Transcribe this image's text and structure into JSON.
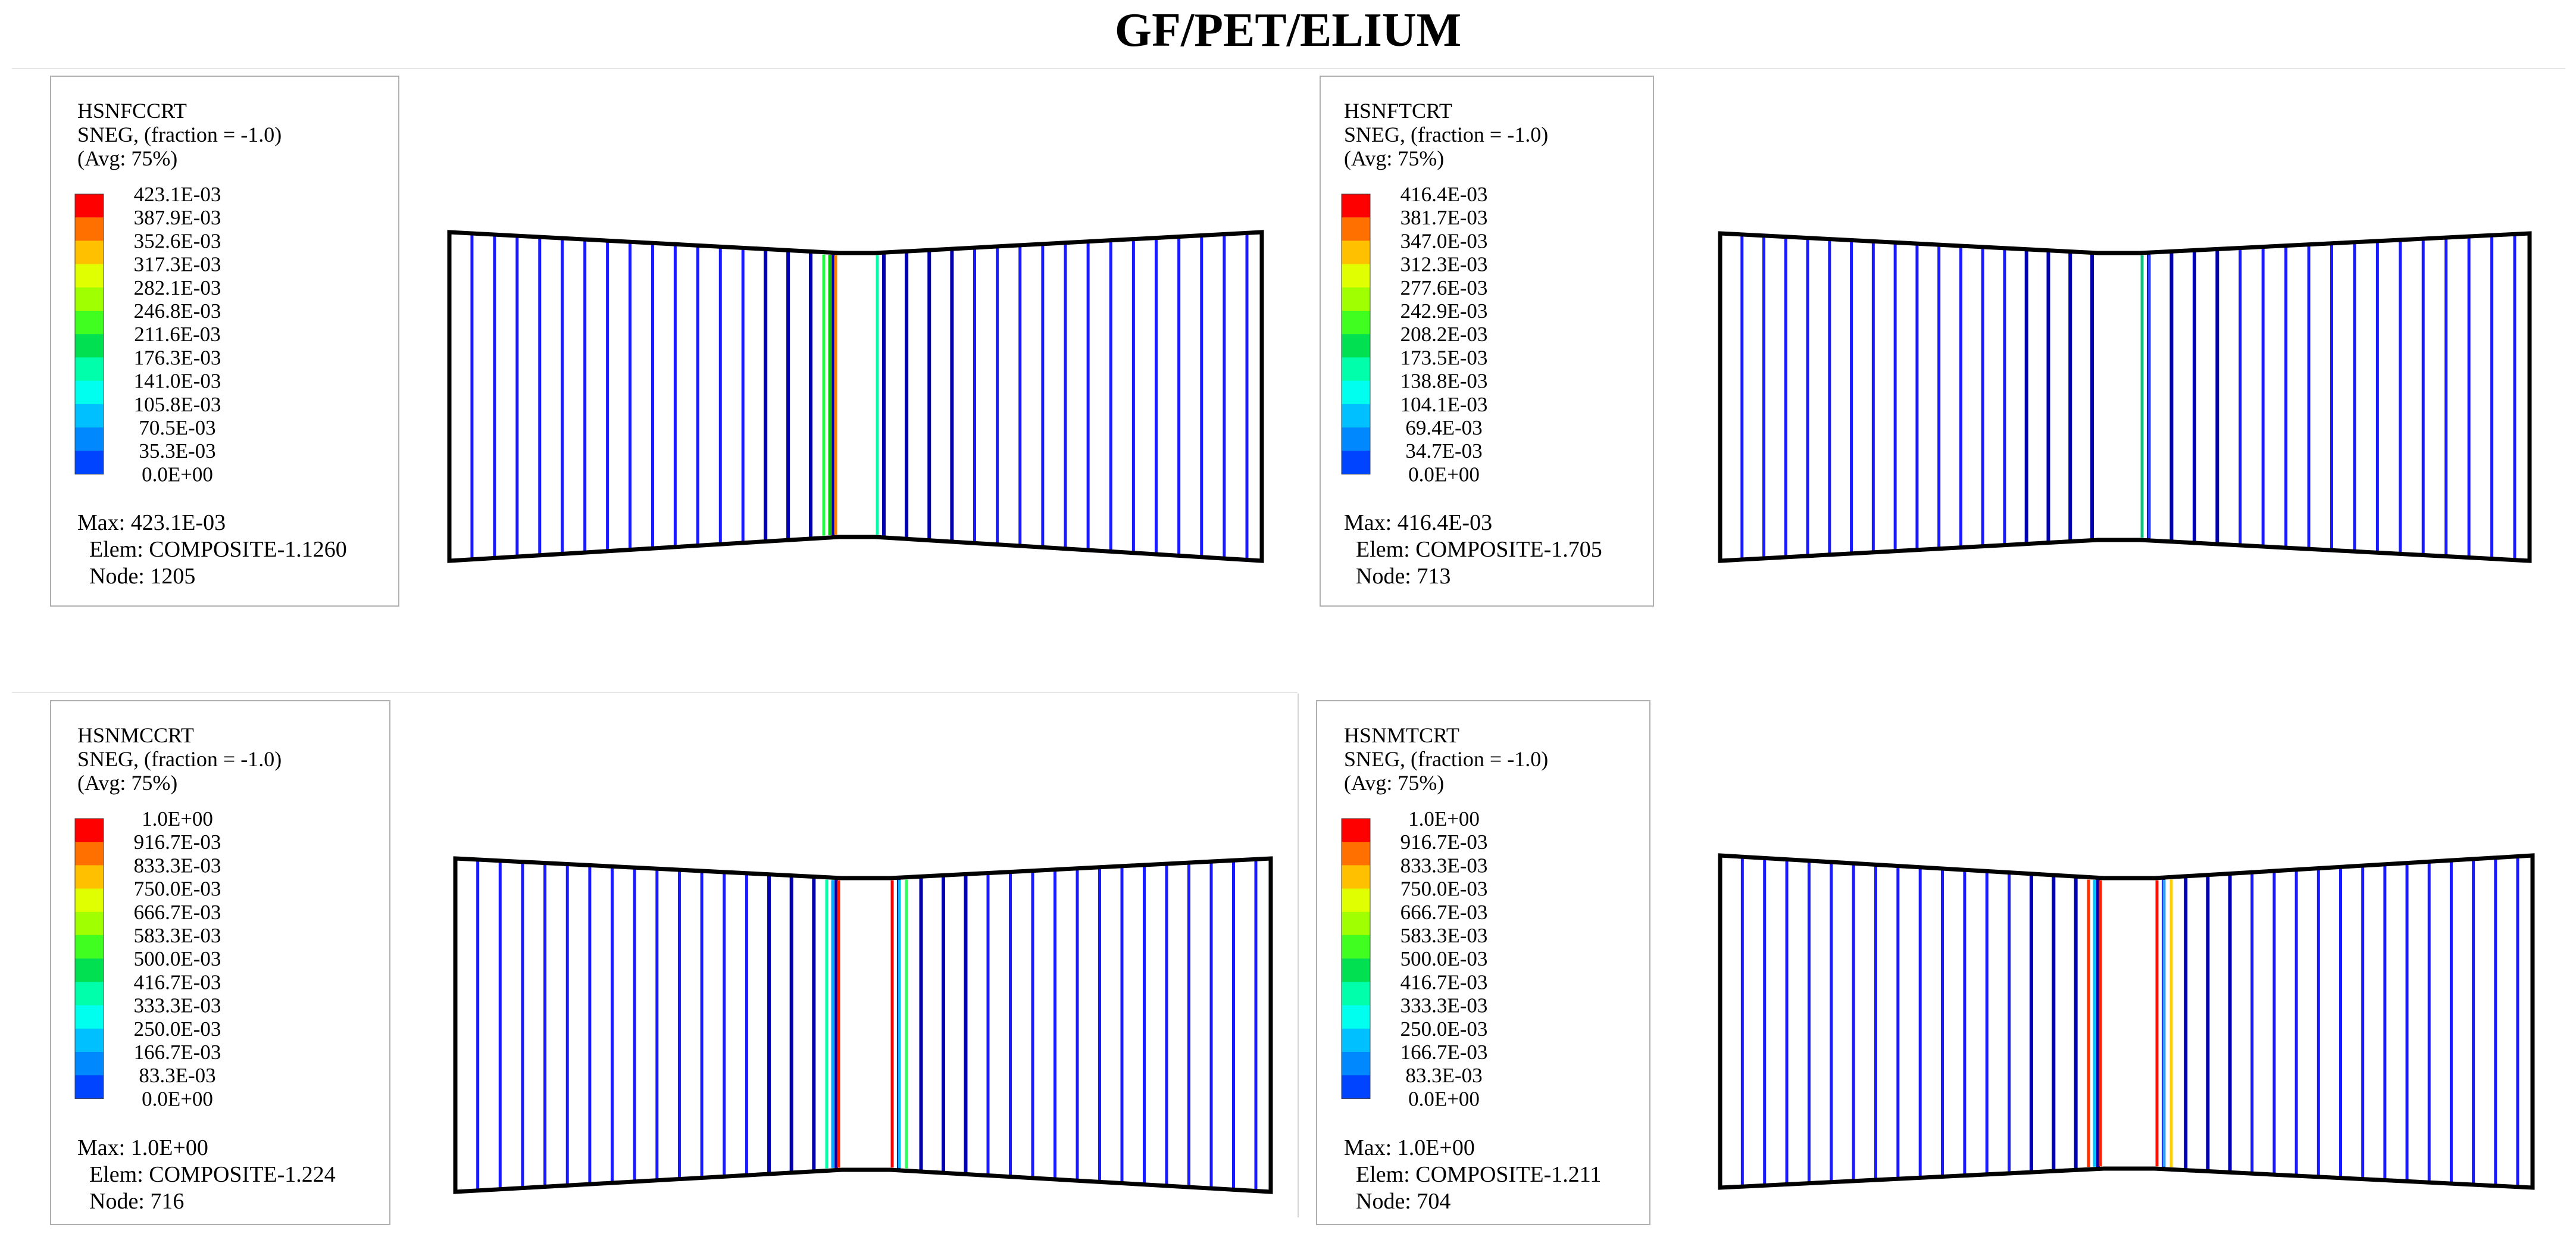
{
  "title": "GF/PET/ELIUM",
  "palette": [
    "#0000ff",
    "#0044ff",
    "#0088ff",
    "#00c0ff",
    "#00ffee",
    "#00ffaa",
    "#00e050",
    "#40ff20",
    "#a0ff00",
    "#e0ff00",
    "#ffc000",
    "#ff7000",
    "#ff0000"
  ],
  "frame_color": "#000000",
  "panels": [
    {
      "variable": "HSNFCCRT",
      "line2": "SNEG, (fraction = -1.0)",
      "line3": "(Avg: 75%)",
      "ticks": [
        "423.1E-03",
        "387.9E-03",
        "352.6E-03",
        "317.3E-03",
        "282.1E-03",
        "246.8E-03",
        "211.6E-03",
        "176.3E-03",
        "141.0E-03",
        "105.8E-03",
        "70.5E-03",
        "35.3E-03",
        "0.0E+00"
      ],
      "max": "Max: 423.1E-03",
      "elem": "Elem: COMPOSITE-1.1260",
      "node": "Node: 1205",
      "highlight": {
        "left": [
          "#ff8000",
          "#00d000",
          "#20ff40"
        ],
        "right": [
          "#00ffaa"
        ]
      }
    },
    {
      "variable": "HSNFTCRT",
      "line2": "SNEG, (fraction = -1.0)",
      "line3": "(Avg: 75%)",
      "ticks": [
        "416.4E-03",
        "381.7E-03",
        "347.0E-03",
        "312.3E-03",
        "277.6E-03",
        "242.9E-03",
        "208.2E-03",
        "173.5E-03",
        "138.8E-03",
        "104.1E-03",
        "69.4E-03",
        "34.7E-03",
        "0.0E+00"
      ],
      "max": "Max: 416.4E-03",
      "elem": "Elem: COMPOSITE-1.705",
      "node": "Node: 713",
      "highlight": {
        "left": [],
        "right": [
          "#10c080",
          "#3040ff"
        ]
      }
    },
    {
      "variable": "HSNMCCRT",
      "line2": "SNEG, (fraction = -1.0)",
      "line3": "(Avg: 75%)",
      "ticks": [
        "1.0E+00",
        "916.7E-03",
        "833.3E-03",
        "750.0E-03",
        "666.7E-03",
        "583.3E-03",
        "500.0E-03",
        "416.7E-03",
        "333.3E-03",
        "250.0E-03",
        "166.7E-03",
        "83.3E-03",
        "0.0E+00"
      ],
      "max": "Max:  1.0E+00",
      "elem": "Elem: COMPOSITE-1.224",
      "node": "Node: 716",
      "highlight": {
        "left": [
          "#ff2000",
          "#00b0ff",
          "#00ffaa"
        ],
        "right": [
          "#ff0000",
          "#00c0ff",
          "#30ff60"
        ]
      }
    },
    {
      "variable": "HSNMTCRT",
      "line2": "SNEG, (fraction = -1.0)",
      "line3": "(Avg: 75%)",
      "ticks": [
        "1.0E+00",
        "916.7E-03",
        "833.3E-03",
        "750.0E-03",
        "666.7E-03",
        "583.3E-03",
        "500.0E-03",
        "416.7E-03",
        "333.3E-03",
        "250.0E-03",
        "166.7E-03",
        "83.3E-03",
        "0.0E+00"
      ],
      "max": "Max:  1.0E+00",
      "elem": "Elem: COMPOSITE-1.211",
      "node": "Node: 704",
      "highlight": {
        "left": [
          "#ff2000",
          "#00c0ff",
          "#ff3000"
        ],
        "right": [
          "#ff1000",
          "#30a0ff",
          "#ffd000"
        ]
      }
    }
  ]
}
